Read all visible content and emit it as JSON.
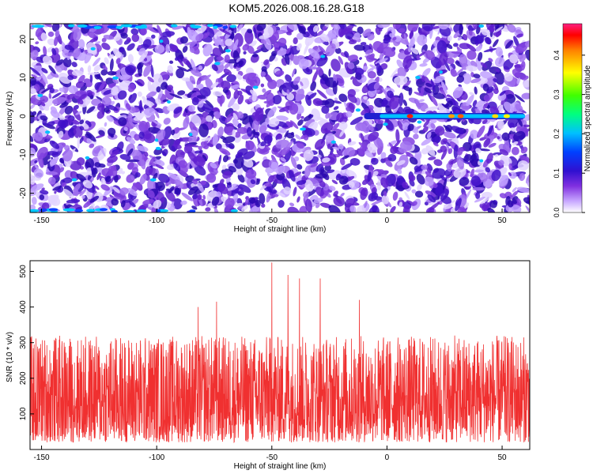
{
  "title": "KOM5.2026.008.16.28.G18",
  "chart_data": [
    {
      "type": "heatmap",
      "xlabel": "Height of straight line (km)",
      "ylabel": "Frequency (Hz)",
      "xlim": [
        -155,
        62
      ],
      "ylim": [
        -25,
        24
      ],
      "x_ticks": [
        -150,
        -100,
        -50,
        0,
        50
      ],
      "y_ticks": [
        -20,
        -10,
        0,
        10,
        20
      ],
      "colorbar": {
        "label": "Normalized spectral amplitude",
        "range": [
          0,
          0.48
        ],
        "ticks": [
          0.0,
          0.1,
          0.2,
          0.3,
          0.4
        ],
        "colors": [
          "#ffffff",
          "#c8a8ff",
          "#8030e0",
          "#3010d0",
          "#0040ff",
          "#00c0ff",
          "#00ff80",
          "#40ff00",
          "#ffff00",
          "#ff8000",
          "#ff0000",
          "#ff2080"
        ]
      },
      "features": [
        {
          "label": "",
          "kind": "horizontal streak",
          "y": 0,
          "x_range": [
            -10,
            60
          ],
          "peak_amplitude": 0.45
        }
      ]
    },
    {
      "type": "line",
      "xlabel": "Height of straight line (km)",
      "ylabel": "SNR (10 * v/v)",
      "xlim": [
        -155,
        62
      ],
      "ylim": [
        0,
        530
      ],
      "x_ticks": [
        -150,
        -100,
        -50,
        0,
        50
      ],
      "y_ticks": [
        100,
        200,
        300,
        400,
        500
      ],
      "color": "#f03030",
      "series": [
        {
          "x_step": 0.1,
          "typical_range": [
            20,
            320
          ],
          "peaks": [
            {
              "x": -50,
              "y": 525
            },
            {
              "x": -43,
              "y": 490
            },
            {
              "x": -38,
              "y": 480
            },
            {
              "x": -29,
              "y": 480
            },
            {
              "x": -12,
              "y": 420
            },
            {
              "x": -74,
              "y": 415
            },
            {
              "x": -82,
              "y": 400
            }
          ]
        }
      ]
    }
  ]
}
